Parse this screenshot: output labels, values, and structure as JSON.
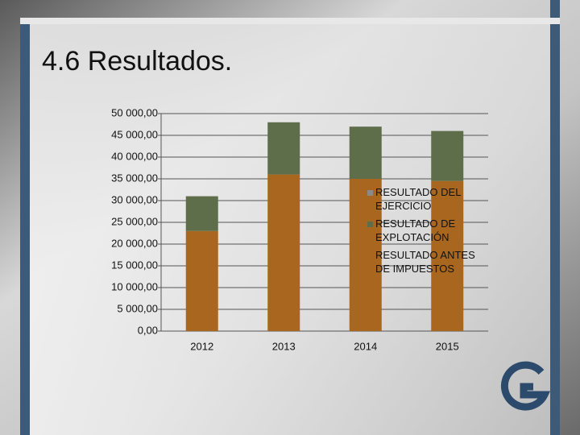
{
  "title": "4.6 Resultados.",
  "chart_data": {
    "type": "stacked_bar",
    "categories": [
      "2012",
      "2013",
      "2014",
      "2015"
    ],
    "series": [
      {
        "name": "RESULTADO ANTES DE IMPUESTOS",
        "color": "#a8661f",
        "values": [
          23000,
          36000,
          35000,
          34500
        ]
      },
      {
        "name": "RESULTADO DE EXPLOTACIÓN",
        "color": "#5f6e4a",
        "values": [
          8000,
          12000,
          12000,
          11500
        ]
      },
      {
        "name": "RESULTADO DEL EJERCICIO",
        "color": "#8a8a8a",
        "values": [
          0,
          0,
          0,
          0
        ]
      }
    ],
    "ylim": [
      0,
      50000
    ],
    "yticks": [
      {
        "value": 0,
        "label": "0,00"
      },
      {
        "value": 5000,
        "label": "5 000,00"
      },
      {
        "value": 10000,
        "label": "10 000,00"
      },
      {
        "value": 15000,
        "label": "15 000,00"
      },
      {
        "value": 20000,
        "label": "20 000,00"
      },
      {
        "value": 25000,
        "label": "25 000,00"
      },
      {
        "value": 30000,
        "label": "30 000,00"
      },
      {
        "value": 35000,
        "label": "35 000,00"
      },
      {
        "value": 40000,
        "label": "40 000,00"
      },
      {
        "value": 45000,
        "label": "45 000,00"
      },
      {
        "value": 50000,
        "label": "50 000,00"
      }
    ],
    "grid": true,
    "legend": "right"
  }
}
